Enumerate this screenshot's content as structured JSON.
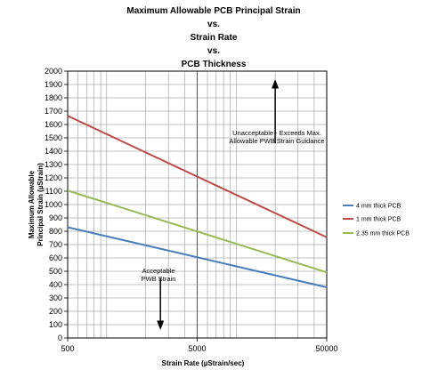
{
  "chart_data": {
    "type": "line",
    "title": [
      "Maximum Allowable PCB Principal Strain",
      "vs.",
      "Strain Rate",
      "vs.",
      "PCB Thickness"
    ],
    "xlabel": "Strain Rate (µStrain/sec)",
    "ylabel": [
      "Maximum Allowable",
      "Principal Strain (µStrain)"
    ],
    "x_scale": "log",
    "xlim": [
      500,
      50000
    ],
    "x_ticks": [
      "500",
      "5000",
      "50000"
    ],
    "ylim": [
      0,
      2000
    ],
    "y_ticks": [
      "0",
      "100",
      "200",
      "300",
      "400",
      "500",
      "600",
      "700",
      "800",
      "900",
      "1000",
      "1100",
      "1200",
      "1300",
      "1400",
      "1500",
      "1600",
      "1700",
      "1800",
      "1900",
      "2000"
    ],
    "grid": true,
    "legend_position": "right",
    "series": [
      {
        "name": "4 mm thick PCB",
        "color": "#4a7ebb",
        "x": [
          500,
          50000
        ],
        "y": [
          830,
          380
        ]
      },
      {
        "name": "1 mm thick PCB",
        "color": "#be4b48",
        "x": [
          500,
          50000
        ],
        "y": [
          1665,
          755
        ]
      },
      {
        "name": "2.35 mm thick PCB",
        "color": "#98b954",
        "x": [
          500,
          50000
        ],
        "y": [
          1105,
          492
        ]
      }
    ],
    "annotations": [
      {
        "lines": [
          "Unacceptable - Exceeds Max.",
          "Allowable PWB Strain Guidance"
        ],
        "arrow": "up",
        "x": 20000,
        "y": 1460
      },
      {
        "lines": [
          "Acceptable",
          "PWB Strain"
        ],
        "arrow": "down",
        "x": 2600,
        "y": 450
      }
    ]
  }
}
